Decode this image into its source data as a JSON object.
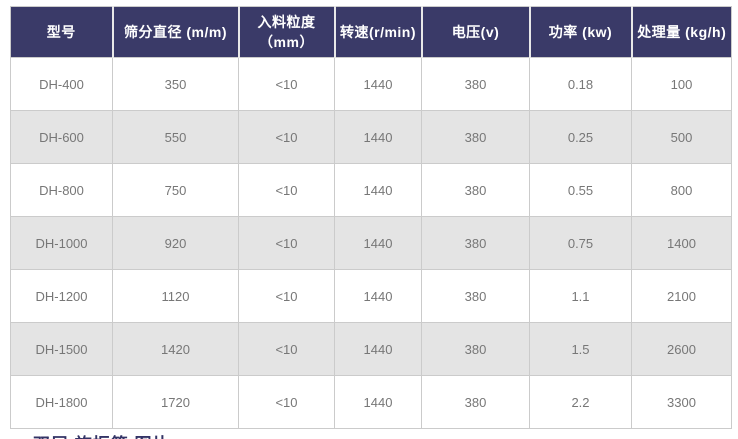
{
  "table": {
    "columns": [
      {
        "label": "型号"
      },
      {
        "label": "筛分直径 (m/m)"
      },
      {
        "label": "入料粒度（mm）"
      },
      {
        "label": "转速(r/min)"
      },
      {
        "label": "电压(v)"
      },
      {
        "label": "功率 (kw)"
      },
      {
        "label": "处理量 (kg/h)"
      }
    ],
    "rows": [
      {
        "model": "DH-400",
        "diameter": "350",
        "feed_size": "<10",
        "speed": "1440",
        "voltage": "380",
        "power": "0.18",
        "capacity": "100"
      },
      {
        "model": "DH-600",
        "diameter": "550",
        "feed_size": "<10",
        "speed": "1440",
        "voltage": "380",
        "power": "0.25",
        "capacity": "500"
      },
      {
        "model": "DH-800",
        "diameter": "750",
        "feed_size": "<10",
        "speed": "1440",
        "voltage": "380",
        "power": "0.55",
        "capacity": "800"
      },
      {
        "model": "DH-1000",
        "diameter": "920",
        "feed_size": "<10",
        "speed": "1440",
        "voltage": "380",
        "power": "0.75",
        "capacity": "1400"
      },
      {
        "model": "DH-1200",
        "diameter": "1120",
        "feed_size": "<10",
        "speed": "1440",
        "voltage": "380",
        "power": "1.1",
        "capacity": "2100"
      },
      {
        "model": "DH-1500",
        "diameter": "1420",
        "feed_size": "<10",
        "speed": "1440",
        "voltage": "380",
        "power": "1.5",
        "capacity": "2600"
      },
      {
        "model": "DH-1800",
        "diameter": "1720",
        "feed_size": "<10",
        "speed": "1440",
        "voltage": "380",
        "power": "2.2",
        "capacity": "3300"
      }
    ]
  },
  "caption": {
    "text": "双层 旋振筛 图片"
  },
  "colors": {
    "header_bg": "#3a3a68",
    "header_text": "#ffffff",
    "row_bg": "#ffffff",
    "row_alt_bg": "#e4e4e4",
    "border": "#cbcbcb",
    "cell_text": "#777777",
    "caption_text": "#333366"
  }
}
